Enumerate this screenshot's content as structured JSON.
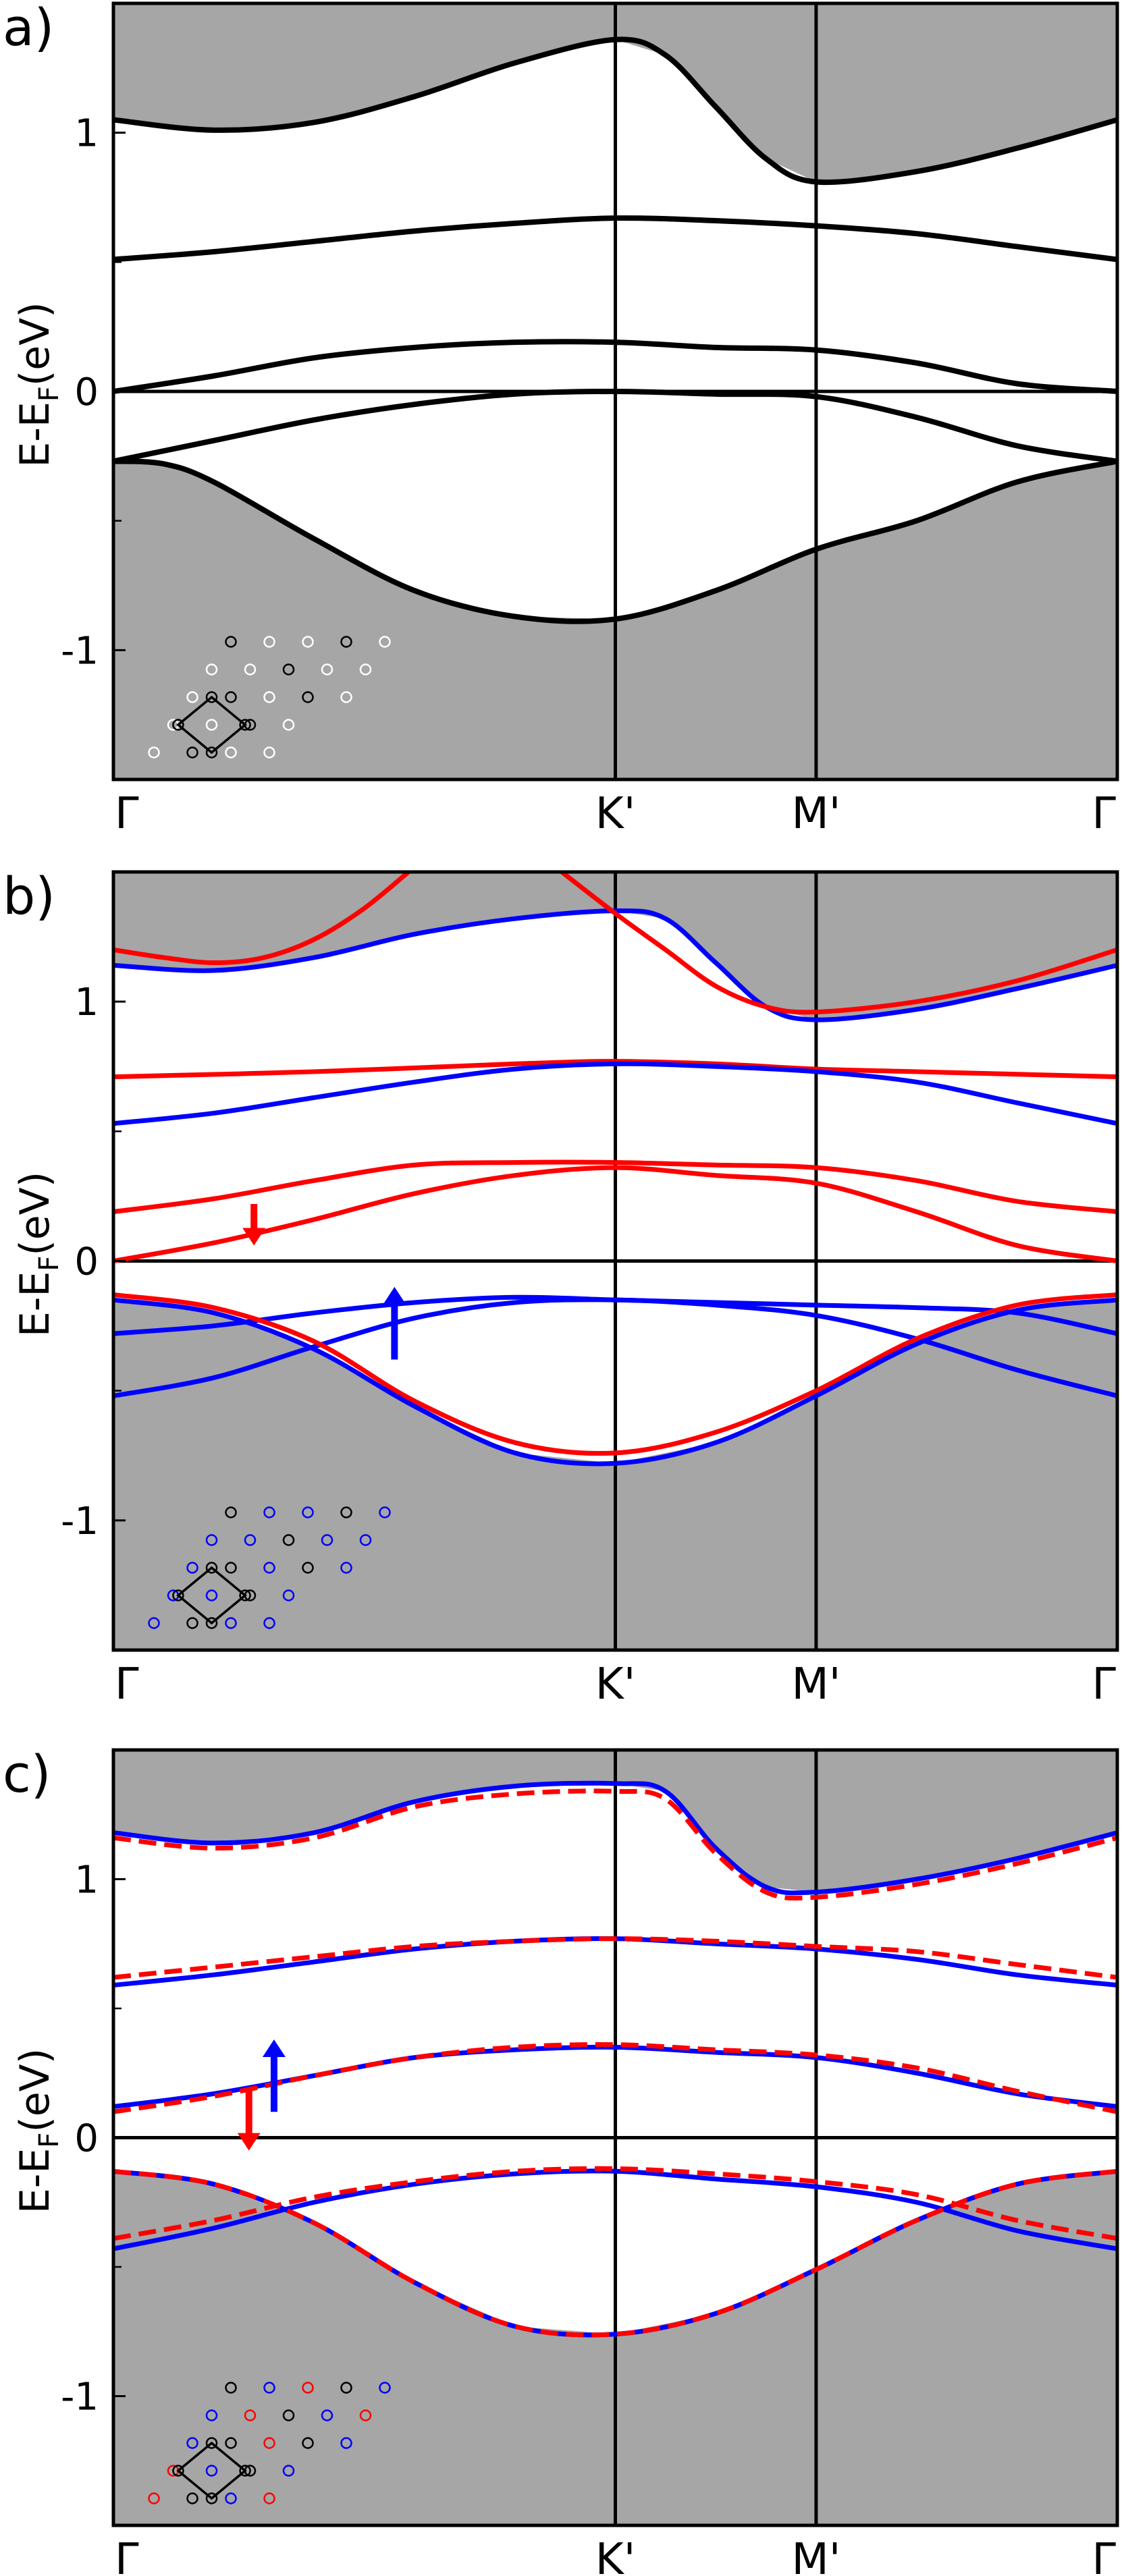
{
  "figure": {
    "ylabel_main": "E-E",
    "ylabel_sub": "F",
    "ylabel_unit": "(eV)",
    "colors": {
      "gray_fill": "#a6a6a6",
      "black": "#000000",
      "red": "#ff0000",
      "blue": "#0000ff",
      "white": "#ffffff"
    }
  },
  "chart_data": [
    {
      "panel_label": "a)",
      "type": "line",
      "ylim": [
        -1.5,
        1.5
      ],
      "yticks": [
        1,
        0,
        -1
      ],
      "ytick_labels": [
        "1",
        "0",
        "-1"
      ],
      "xlim": [
        0,
        1
      ],
      "xticks": [
        0,
        0.5,
        0.7,
        1
      ],
      "xtick_labels": [
        "Γ",
        "K'",
        "M'",
        "Γ"
      ],
      "gap_gray": {
        "lower_edge": 0,
        "upper_edge": 1
      },
      "series": [
        {
          "color": "black",
          "style": "solid",
          "x": [
            0,
            0.1,
            0.2,
            0.3,
            0.4,
            0.5,
            0.55,
            0.6,
            0.65,
            0.7,
            0.8,
            0.9,
            1.0
          ],
          "y": [
            1.05,
            1.01,
            1.04,
            1.14,
            1.27,
            1.36,
            1.3,
            1.1,
            0.9,
            0.81,
            0.85,
            0.94,
            1.05
          ]
        },
        {
          "color": "black",
          "style": "solid",
          "x": [
            0,
            0.1,
            0.2,
            0.3,
            0.4,
            0.5,
            0.6,
            0.7,
            0.8,
            0.9,
            1.0
          ],
          "y": [
            0.51,
            0.54,
            0.58,
            0.62,
            0.65,
            0.67,
            0.66,
            0.64,
            0.61,
            0.56,
            0.51
          ]
        },
        {
          "color": "black",
          "style": "solid",
          "x": [
            0,
            0.1,
            0.2,
            0.3,
            0.4,
            0.5,
            0.6,
            0.7,
            0.8,
            0.9,
            1.0
          ],
          "y": [
            0.0,
            0.06,
            0.13,
            0.17,
            0.19,
            0.19,
            0.17,
            0.16,
            0.11,
            0.03,
            0.0
          ]
        },
        {
          "color": "black",
          "style": "solid",
          "x": [
            0,
            0.1,
            0.2,
            0.3,
            0.4,
            0.5,
            0.6,
            0.7,
            0.8,
            0.9,
            1.0
          ],
          "y": [
            -0.27,
            -0.19,
            -0.11,
            -0.05,
            -0.01,
            0.0,
            -0.01,
            -0.02,
            -0.1,
            -0.21,
            -0.27
          ]
        },
        {
          "color": "black",
          "style": "solid",
          "x": [
            0,
            0.05,
            0.1,
            0.2,
            0.3,
            0.4,
            0.5,
            0.6,
            0.7,
            0.8,
            0.9,
            1.0
          ],
          "y": [
            -0.27,
            -0.28,
            -0.35,
            -0.57,
            -0.77,
            -0.87,
            -0.88,
            -0.77,
            -0.61,
            -0.5,
            -0.35,
            -0.27
          ]
        }
      ],
      "arrows": [],
      "inset": {
        "lattice_dot_colors": [
          "black",
          "white",
          "white",
          "black",
          "white",
          "white",
          "white",
          "black",
          "white",
          "white",
          "white",
          "black",
          "white",
          "black",
          "white",
          "white",
          "white",
          "black",
          "white",
          "white",
          "black",
          "white",
          "white"
        ]
      }
    },
    {
      "panel_label": "b)",
      "type": "line",
      "ylim": [
        -1.5,
        1.5
      ],
      "yticks": [
        1,
        0,
        -1
      ],
      "ytick_labels": [
        "1",
        "0",
        "-1"
      ],
      "xlim": [
        0,
        1
      ],
      "xticks": [
        0,
        0.5,
        0.7,
        1
      ],
      "xtick_labels": [
        "Γ",
        "K'",
        "M'",
        "Γ"
      ],
      "gap_gray": {
        "lower_edge": -0.11,
        "upper_edge": 0.96
      },
      "series": [
        {
          "color": "blue",
          "style": "solid",
          "x": [
            0,
            0.1,
            0.2,
            0.3,
            0.4,
            0.5,
            0.55,
            0.6,
            0.65,
            0.7,
            0.8,
            0.9,
            1.0
          ],
          "y": [
            1.14,
            1.12,
            1.17,
            1.26,
            1.32,
            1.35,
            1.32,
            1.15,
            0.98,
            0.93,
            0.97,
            1.05,
            1.14
          ]
        },
        {
          "color": "red",
          "style": "solid",
          "x": [
            0,
            0.05,
            0.1,
            0.15,
            0.2,
            0.25,
            0.3
          ],
          "y": [
            1.2,
            1.17,
            1.15,
            1.17,
            1.24,
            1.36,
            1.52
          ]
        },
        {
          "color": "red",
          "style": "solid",
          "x": [
            0.44,
            0.5,
            0.55,
            0.6,
            0.65,
            0.7,
            0.8,
            0.9,
            1.0
          ],
          "y": [
            1.52,
            1.34,
            1.2,
            1.06,
            0.98,
            0.96,
            1.0,
            1.08,
            1.2
          ]
        },
        {
          "color": "red",
          "style": "solid",
          "x": [
            0,
            0.2,
            0.4,
            0.5,
            0.6,
            0.7,
            0.8,
            1.0
          ],
          "y": [
            0.71,
            0.73,
            0.76,
            0.77,
            0.76,
            0.74,
            0.73,
            0.71
          ]
        },
        {
          "color": "blue",
          "style": "solid",
          "x": [
            0,
            0.1,
            0.2,
            0.3,
            0.4,
            0.5,
            0.6,
            0.7,
            0.8,
            0.9,
            1.0
          ],
          "y": [
            0.53,
            0.57,
            0.63,
            0.69,
            0.74,
            0.76,
            0.75,
            0.73,
            0.69,
            0.61,
            0.53
          ]
        },
        {
          "color": "red",
          "style": "solid",
          "x": [
            0,
            0.1,
            0.2,
            0.3,
            0.4,
            0.5,
            0.6,
            0.7,
            0.8,
            0.9,
            1.0
          ],
          "y": [
            0.19,
            0.24,
            0.31,
            0.37,
            0.38,
            0.38,
            0.37,
            0.36,
            0.31,
            0.23,
            0.19
          ]
        },
        {
          "color": "red",
          "style": "solid",
          "x": [
            0,
            0.1,
            0.2,
            0.3,
            0.4,
            0.5,
            0.6,
            0.7,
            0.8,
            0.9,
            1.0
          ],
          "y": [
            0.0,
            0.07,
            0.16,
            0.26,
            0.33,
            0.36,
            0.33,
            0.3,
            0.19,
            0.06,
            0.0
          ]
        },
        {
          "color": "blue",
          "style": "solid",
          "x": [
            0,
            0.1,
            0.2,
            0.3,
            0.4,
            0.5,
            0.6,
            0.7,
            0.8,
            0.9,
            1.0
          ],
          "y": [
            -0.28,
            -0.25,
            -0.2,
            -0.16,
            -0.14,
            -0.15,
            -0.16,
            -0.17,
            -0.18,
            -0.2,
            -0.28
          ]
        },
        {
          "color": "blue",
          "style": "solid",
          "x": [
            0,
            0.1,
            0.2,
            0.3,
            0.4,
            0.5,
            0.6,
            0.7,
            0.8,
            0.9,
            1.0
          ],
          "y": [
            -0.52,
            -0.45,
            -0.33,
            -0.22,
            -0.16,
            -0.15,
            -0.17,
            -0.21,
            -0.3,
            -0.42,
            -0.52
          ]
        },
        {
          "color": "red",
          "style": "solid",
          "x": [
            0,
            0.1,
            0.2,
            0.3,
            0.4,
            0.5,
            0.6,
            0.7,
            0.8,
            0.9,
            1.0
          ],
          "y": [
            -0.13,
            -0.18,
            -0.31,
            -0.54,
            -0.7,
            -0.74,
            -0.66,
            -0.5,
            -0.3,
            -0.17,
            -0.13
          ]
        },
        {
          "color": "blue",
          "style": "solid",
          "x": [
            0,
            0.1,
            0.2,
            0.3,
            0.4,
            0.5,
            0.6,
            0.7,
            0.8,
            0.9,
            1.0
          ],
          "y": [
            -0.15,
            -0.2,
            -0.34,
            -0.56,
            -0.74,
            -0.78,
            -0.7,
            -0.52,
            -0.32,
            -0.19,
            -0.15
          ]
        }
      ],
      "arrows": [
        {
          "color": "red",
          "direction": "down",
          "x": 0.14,
          "y_from": 0.22,
          "y_to": 0.06
        },
        {
          "color": "blue",
          "direction": "up",
          "x": 0.28,
          "y_from": -0.38,
          "y_to": -0.1
        }
      ],
      "inset": {
        "lattice_dot_colors": [
          "black",
          "blue",
          "blue",
          "black",
          "blue",
          "blue",
          "blue",
          "black",
          "blue",
          "blue",
          "blue",
          "black",
          "blue",
          "black",
          "blue",
          "blue",
          "blue",
          "black",
          "blue",
          "blue",
          "black",
          "blue",
          "blue"
        ]
      }
    },
    {
      "panel_label": "c)",
      "type": "line",
      "ylim": [
        -1.5,
        1.5
      ],
      "yticks": [
        1,
        0,
        -1
      ],
      "ytick_labels": [
        "1",
        "0",
        "-1"
      ],
      "xlim": [
        0,
        1
      ],
      "xticks": [
        0,
        0.5,
        0.7,
        1
      ],
      "xtick_labels": [
        "Γ",
        "K'",
        "M'",
        "Γ"
      ],
      "gap_gray": {
        "lower_edge": -0.13,
        "upper_edge": 0.94
      },
      "series": [
        {
          "color": "blue",
          "style": "solid",
          "x": [
            0,
            0.1,
            0.2,
            0.3,
            0.4,
            0.5,
            0.55,
            0.6,
            0.65,
            0.7,
            0.8,
            0.9,
            1.0
          ],
          "y": [
            1.18,
            1.14,
            1.18,
            1.3,
            1.36,
            1.37,
            1.34,
            1.12,
            0.97,
            0.95,
            1.0,
            1.08,
            1.18
          ]
        },
        {
          "color": "red",
          "style": "dashed",
          "x": [
            0,
            0.1,
            0.2,
            0.3,
            0.4,
            0.5,
            0.55,
            0.6,
            0.65,
            0.7,
            0.8,
            0.9,
            1.0
          ],
          "y": [
            1.16,
            1.12,
            1.16,
            1.28,
            1.33,
            1.34,
            1.31,
            1.1,
            0.95,
            0.93,
            0.98,
            1.06,
            1.16
          ]
        },
        {
          "color": "blue",
          "style": "solid",
          "x": [
            0,
            0.1,
            0.2,
            0.3,
            0.4,
            0.5,
            0.6,
            0.7,
            0.8,
            0.9,
            1.0
          ],
          "y": [
            0.59,
            0.63,
            0.68,
            0.73,
            0.76,
            0.77,
            0.75,
            0.73,
            0.69,
            0.63,
            0.59
          ]
        },
        {
          "color": "red",
          "style": "dashed",
          "x": [
            0,
            0.1,
            0.2,
            0.3,
            0.4,
            0.5,
            0.6,
            0.7,
            0.8,
            0.9,
            1.0
          ],
          "y": [
            0.62,
            0.66,
            0.7,
            0.74,
            0.76,
            0.77,
            0.76,
            0.74,
            0.72,
            0.67,
            0.62
          ]
        },
        {
          "color": "blue",
          "style": "solid",
          "x": [
            0,
            0.1,
            0.2,
            0.3,
            0.4,
            0.5,
            0.6,
            0.7,
            0.8,
            0.9,
            1.0
          ],
          "y": [
            0.12,
            0.17,
            0.24,
            0.31,
            0.34,
            0.35,
            0.33,
            0.31,
            0.25,
            0.17,
            0.12
          ]
        },
        {
          "color": "red",
          "style": "dashed",
          "x": [
            0,
            0.1,
            0.2,
            0.3,
            0.4,
            0.5,
            0.6,
            0.7,
            0.8,
            0.9,
            1.0
          ],
          "y": [
            0.1,
            0.16,
            0.24,
            0.31,
            0.35,
            0.36,
            0.34,
            0.32,
            0.27,
            0.18,
            0.1
          ]
        },
        {
          "color": "blue",
          "style": "solid",
          "x": [
            0,
            0.1,
            0.2,
            0.3,
            0.4,
            0.5,
            0.6,
            0.7,
            0.8,
            0.9,
            1.0
          ],
          "y": [
            -0.43,
            -0.35,
            -0.25,
            -0.18,
            -0.14,
            -0.13,
            -0.16,
            -0.19,
            -0.25,
            -0.36,
            -0.43
          ]
        },
        {
          "color": "red",
          "style": "dashed",
          "x": [
            0,
            0.1,
            0.2,
            0.3,
            0.4,
            0.5,
            0.6,
            0.7,
            0.8,
            0.9,
            1.0
          ],
          "y": [
            -0.39,
            -0.32,
            -0.23,
            -0.17,
            -0.13,
            -0.12,
            -0.14,
            -0.17,
            -0.22,
            -0.32,
            -0.39
          ]
        },
        {
          "color": "blue",
          "style": "solid",
          "x": [
            0,
            0.1,
            0.2,
            0.3,
            0.4,
            0.5,
            0.6,
            0.7,
            0.8,
            0.9,
            1.0
          ],
          "y": [
            -0.13,
            -0.18,
            -0.33,
            -0.56,
            -0.73,
            -0.76,
            -0.68,
            -0.51,
            -0.32,
            -0.18,
            -0.13
          ]
        },
        {
          "color": "red",
          "style": "dashed",
          "x": [
            0,
            0.1,
            0.2,
            0.3,
            0.4,
            0.5,
            0.6,
            0.7,
            0.8,
            0.9,
            1.0
          ],
          "y": [
            -0.13,
            -0.18,
            -0.33,
            -0.56,
            -0.73,
            -0.76,
            -0.68,
            -0.51,
            -0.32,
            -0.18,
            -0.13
          ]
        }
      ],
      "arrows": [
        {
          "color": "red",
          "direction": "down",
          "x": 0.135,
          "y_from": 0.19,
          "y_to": -0.05
        },
        {
          "color": "blue",
          "direction": "up",
          "x": 0.16,
          "y_from": 0.1,
          "y_to": 0.38
        }
      ],
      "inset": {
        "lattice_dot_colors": [
          "black",
          "blue",
          "red",
          "black",
          "blue",
          "blue",
          "red",
          "black",
          "blue",
          "red",
          "blue",
          "black",
          "red",
          "black",
          "blue",
          "red",
          "blue",
          "black",
          "blue",
          "red",
          "black",
          "blue",
          "red"
        ]
      }
    }
  ]
}
